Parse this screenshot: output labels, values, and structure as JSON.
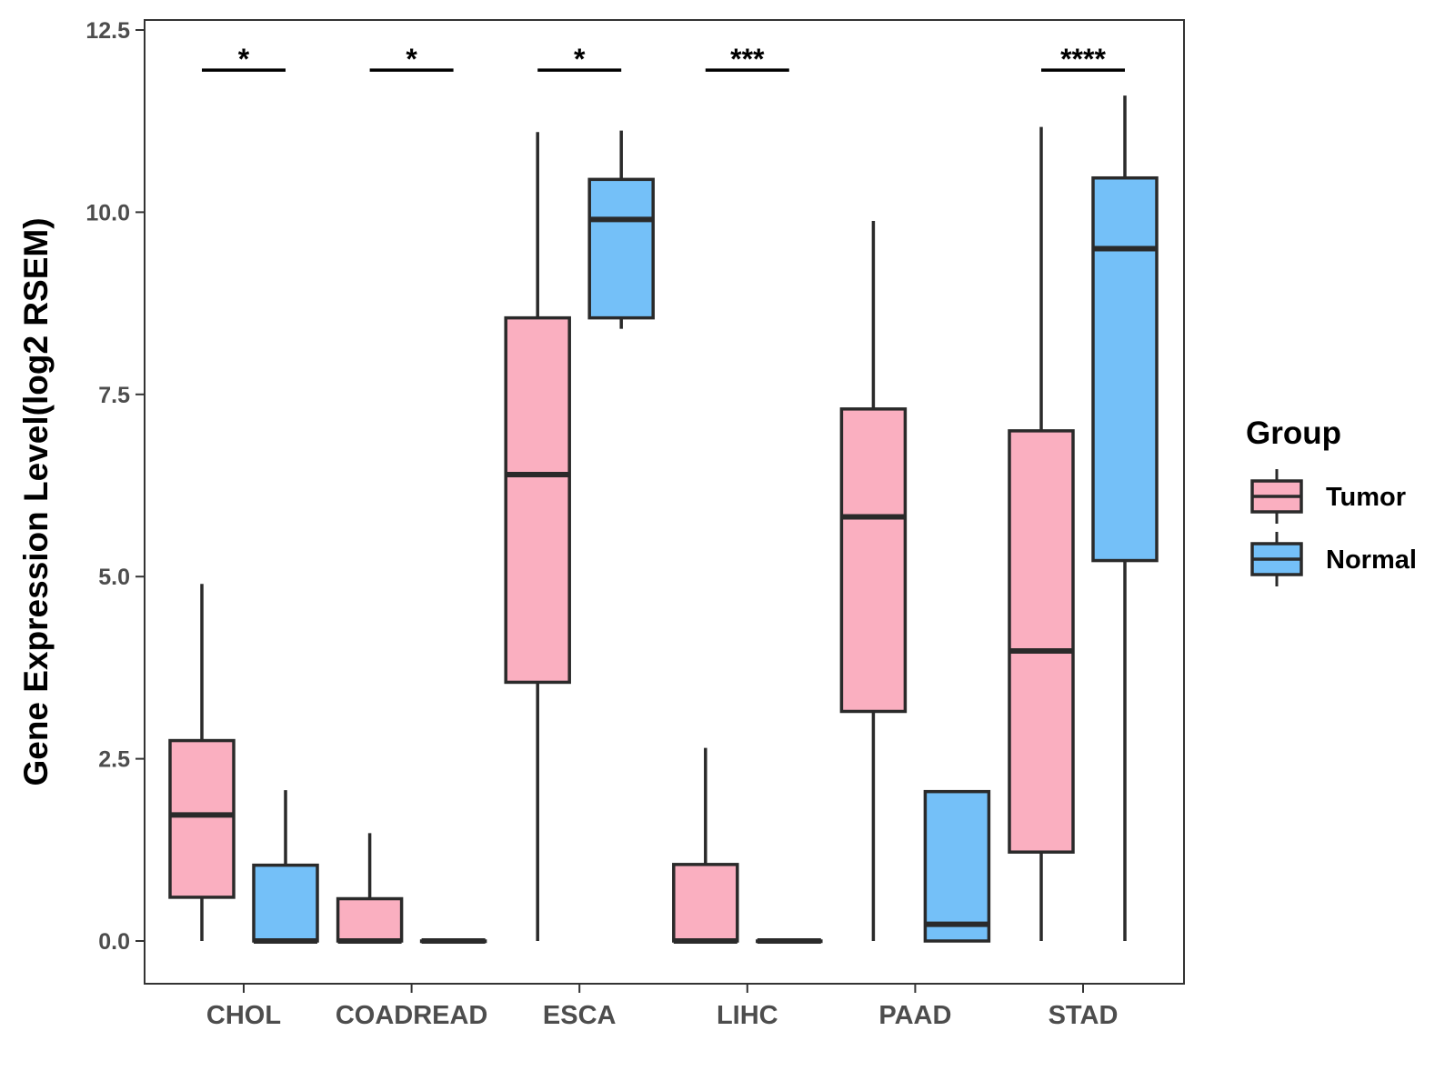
{
  "chart_data": {
    "type": "boxplot",
    "title": "",
    "xlabel": "",
    "ylabel": "Gene Expression Level(log2 RSEM)",
    "ylim": [
      -0.6,
      12.6
    ],
    "yticks": [
      0.0,
      2.5,
      5.0,
      7.5,
      10.0,
      12.5
    ],
    "ytick_labels": [
      "0.0",
      "2.5",
      "5.0",
      "7.5",
      "10.0",
      "12.5"
    ],
    "grid": false,
    "legend": {
      "title": "Group",
      "position": "right",
      "entries": [
        {
          "label": "Tumor",
          "color": "#FAAFC0"
        },
        {
          "label": "Normal",
          "color": "#74C0F8"
        }
      ]
    },
    "categories": [
      "CHOL",
      "COADREAD",
      "ESCA",
      "LIHC",
      "PAAD",
      "STAD"
    ],
    "series": [
      {
        "name": "Tumor",
        "color": "#FAAFC0",
        "boxes": [
          {
            "min": 0.0,
            "q1": 0.6,
            "median": 1.73,
            "q3": 2.75,
            "max": 4.9
          },
          {
            "min": 0.0,
            "q1": 0.0,
            "median": 0.0,
            "q3": 0.58,
            "max": 1.48
          },
          {
            "min": 0.0,
            "q1": 3.55,
            "median": 6.4,
            "q3": 8.55,
            "max": 11.1
          },
          {
            "min": 0.0,
            "q1": 0.0,
            "median": 0.0,
            "q3": 1.05,
            "max": 2.65
          },
          {
            "min": 0.0,
            "q1": 3.15,
            "median": 5.82,
            "q3": 7.3,
            "max": 9.88
          },
          {
            "min": 0.0,
            "q1": 1.22,
            "median": 3.98,
            "q3": 7.0,
            "max": 11.17
          }
        ]
      },
      {
        "name": "Normal",
        "color": "#74C0F8",
        "boxes": [
          {
            "min": 0.0,
            "q1": 0.0,
            "median": 0.0,
            "q3": 1.04,
            "max": 2.07
          },
          {
            "min": 0.0,
            "q1": 0.0,
            "median": 0.0,
            "q3": 0.0,
            "max": 0.0
          },
          {
            "min": 8.4,
            "q1": 8.55,
            "median": 9.9,
            "q3": 10.45,
            "max": 11.12
          },
          {
            "min": 0.0,
            "q1": 0.0,
            "median": 0.0,
            "q3": 0.0,
            "max": 0.0
          },
          {
            "min": 0.0,
            "q1": 0.0,
            "median": 0.23,
            "q3": 2.05,
            "max": 2.05
          },
          {
            "min": 0.0,
            "q1": 5.22,
            "median": 9.5,
            "q3": 10.47,
            "max": 11.6
          }
        ]
      }
    ],
    "significance": [
      {
        "category": "CHOL",
        "label": "*"
      },
      {
        "category": "COADREAD",
        "label": "*"
      },
      {
        "category": "ESCA",
        "label": "*"
      },
      {
        "category": "LIHC",
        "label": "***"
      },
      {
        "category": "PAAD",
        "label": ""
      },
      {
        "category": "STAD",
        "label": "****"
      }
    ],
    "significance_y": 11.95
  }
}
